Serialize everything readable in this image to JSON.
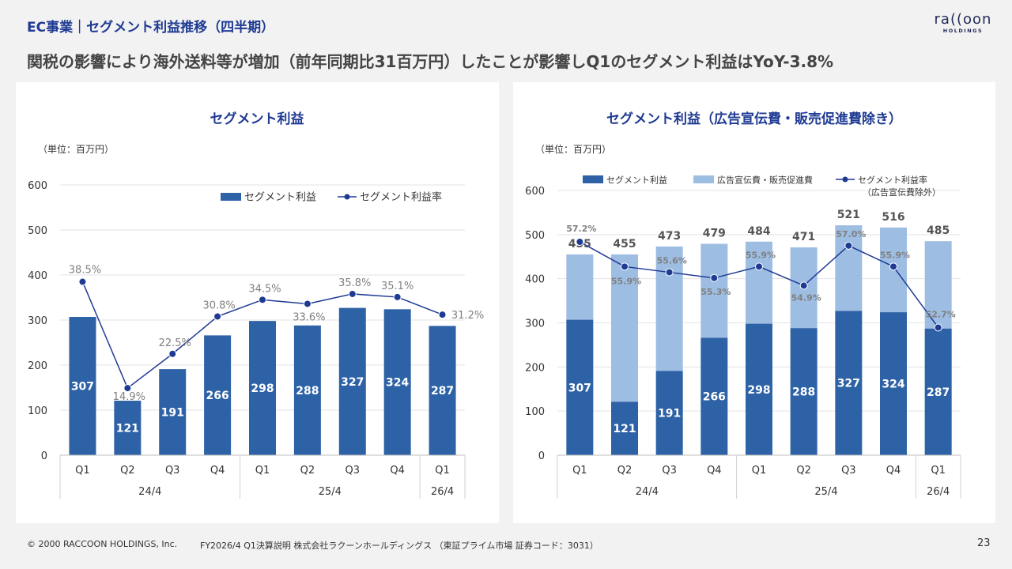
{
  "header": {
    "section_title": "EC事業｜セグメント利益推移（四半期）",
    "headline": "関税の影響により海外送料等が増加（前年同期比31百万円）したことが影響しQ1のセグメント利益はYoY-3.8%",
    "logo_text": "ra((oon",
    "logo_sub": "HOLDINGS"
  },
  "footer": {
    "copyright": "© 2000 RACCOON HOLDINGS, Inc.",
    "doc": "FY2026/4 Q1決算説明 株式会社ラクーンホールディングス （東証プライム市場 証券コード：3031）",
    "page": "23"
  },
  "colors": {
    "bar_dark": "#2e62a6",
    "bar_light": "#9dbde3",
    "line": "#1f3a93",
    "pct_text": "#808080"
  },
  "chart_data": [
    {
      "type": "bar",
      "title": "セグメント利益",
      "unit": "（単位：百万円）",
      "categories": [
        "Q1",
        "Q2",
        "Q3",
        "Q4",
        "Q1",
        "Q2",
        "Q3",
        "Q4",
        "Q1"
      ],
      "groups": [
        {
          "label": "24/4",
          "span": 4
        },
        {
          "label": "25/4",
          "span": 4
        },
        {
          "label": "26/4",
          "span": 1
        }
      ],
      "ylim": [
        0,
        600
      ],
      "yticks": [
        0,
        100,
        200,
        300,
        400,
        500,
        600
      ],
      "series": [
        {
          "name": "セグメント利益",
          "kind": "bar",
          "values": [
            307,
            121,
            191,
            266,
            298,
            288,
            327,
            324,
            287
          ]
        },
        {
          "name": "セグメント利益率",
          "kind": "line",
          "values": [
            38.5,
            14.9,
            22.5,
            30.8,
            34.5,
            33.6,
            35.8,
            35.1,
            31.2
          ],
          "labels": [
            "38.5%",
            "14.9%",
            "22.5%",
            "30.8%",
            "34.5%",
            "33.6%",
            "35.8%",
            "35.1%",
            "31.2%"
          ]
        }
      ]
    },
    {
      "type": "bar",
      "title": "セグメント利益（広告宣伝費・販売促進費除き）",
      "unit": "（単位：百万円）",
      "categories": [
        "Q1",
        "Q2",
        "Q3",
        "Q4",
        "Q1",
        "Q2",
        "Q3",
        "Q4",
        "Q1"
      ],
      "groups": [
        {
          "label": "24/4",
          "span": 4
        },
        {
          "label": "25/4",
          "span": 4
        },
        {
          "label": "26/4",
          "span": 1
        }
      ],
      "ylim": [
        0,
        600
      ],
      "yticks": [
        0,
        100,
        200,
        300,
        400,
        500,
        600
      ],
      "totals": [
        455,
        455,
        473,
        479,
        484,
        471,
        521,
        516,
        485
      ],
      "series": [
        {
          "name": "セグメント利益",
          "kind": "bar",
          "values": [
            307,
            121,
            191,
            266,
            298,
            288,
            327,
            324,
            287
          ]
        },
        {
          "name": "広告宣伝費・販売促進費",
          "kind": "bar_stack",
          "values": [
            148,
            334,
            282,
            213,
            186,
            183,
            194,
            192,
            198
          ]
        },
        {
          "name": "セグメント利益率",
          "name_sub": "（広告宣伝費除外）",
          "kind": "line",
          "values": [
            57.2,
            55.9,
            55.6,
            55.3,
            55.9,
            54.9,
            57.0,
            55.9,
            52.7
          ],
          "labels": [
            "57.2%",
            "55.9%",
            "55.6%",
            "55.3%",
            "55.9%",
            "54.9%",
            "57.0%",
            "55.9%",
            "52.7%"
          ]
        }
      ]
    }
  ]
}
